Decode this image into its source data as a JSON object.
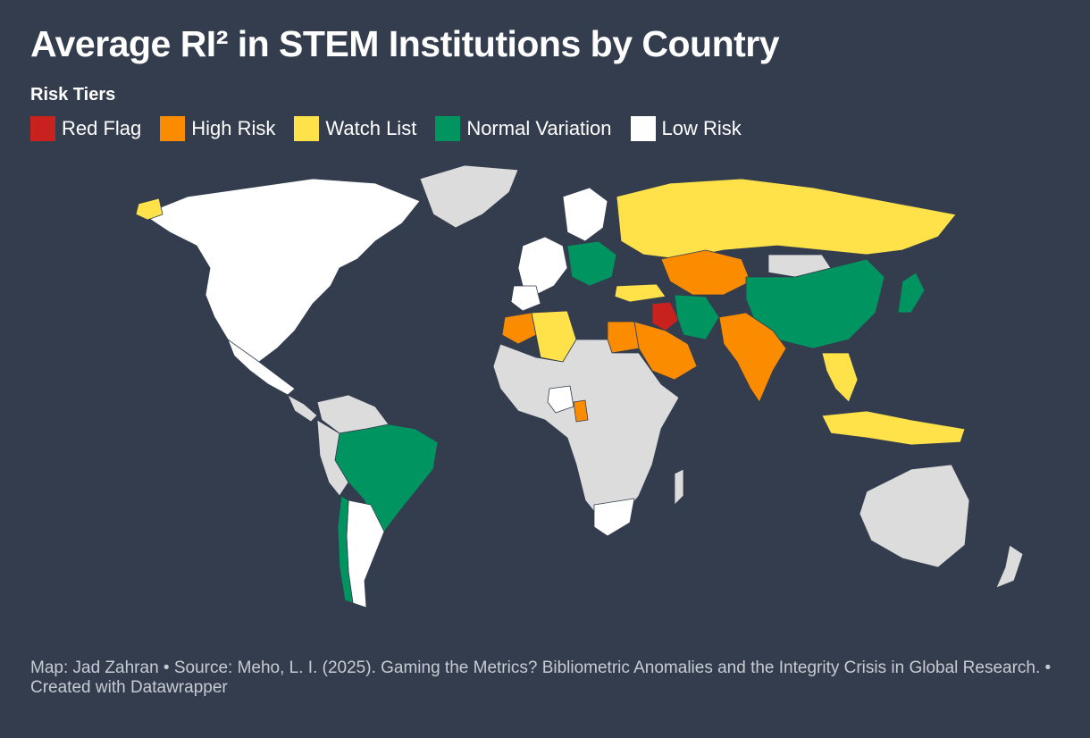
{
  "title": "Average RI² in STEM Institutions by Country",
  "legend": {
    "title": "Risk Tiers",
    "items": [
      {
        "label": "Red Flag",
        "color": "#c9211e"
      },
      {
        "label": "High Risk",
        "color": "#fb8c00"
      },
      {
        "label": "Watch List",
        "color": "#ffe24a"
      },
      {
        "label": "Normal Variation",
        "color": "#009460"
      },
      {
        "label": "Low Risk",
        "color": "#ffffff"
      }
    ]
  },
  "no_data_color": "#dcdcdc",
  "background_color": "#333d4e",
  "footer": "Map: Jad Zahran • Source: Meho, L. I. (2025). Gaming the Metrics? Bibliometric Anomalies and the Integrity Crisis in Global Research. • Created with Datawrapper"
}
